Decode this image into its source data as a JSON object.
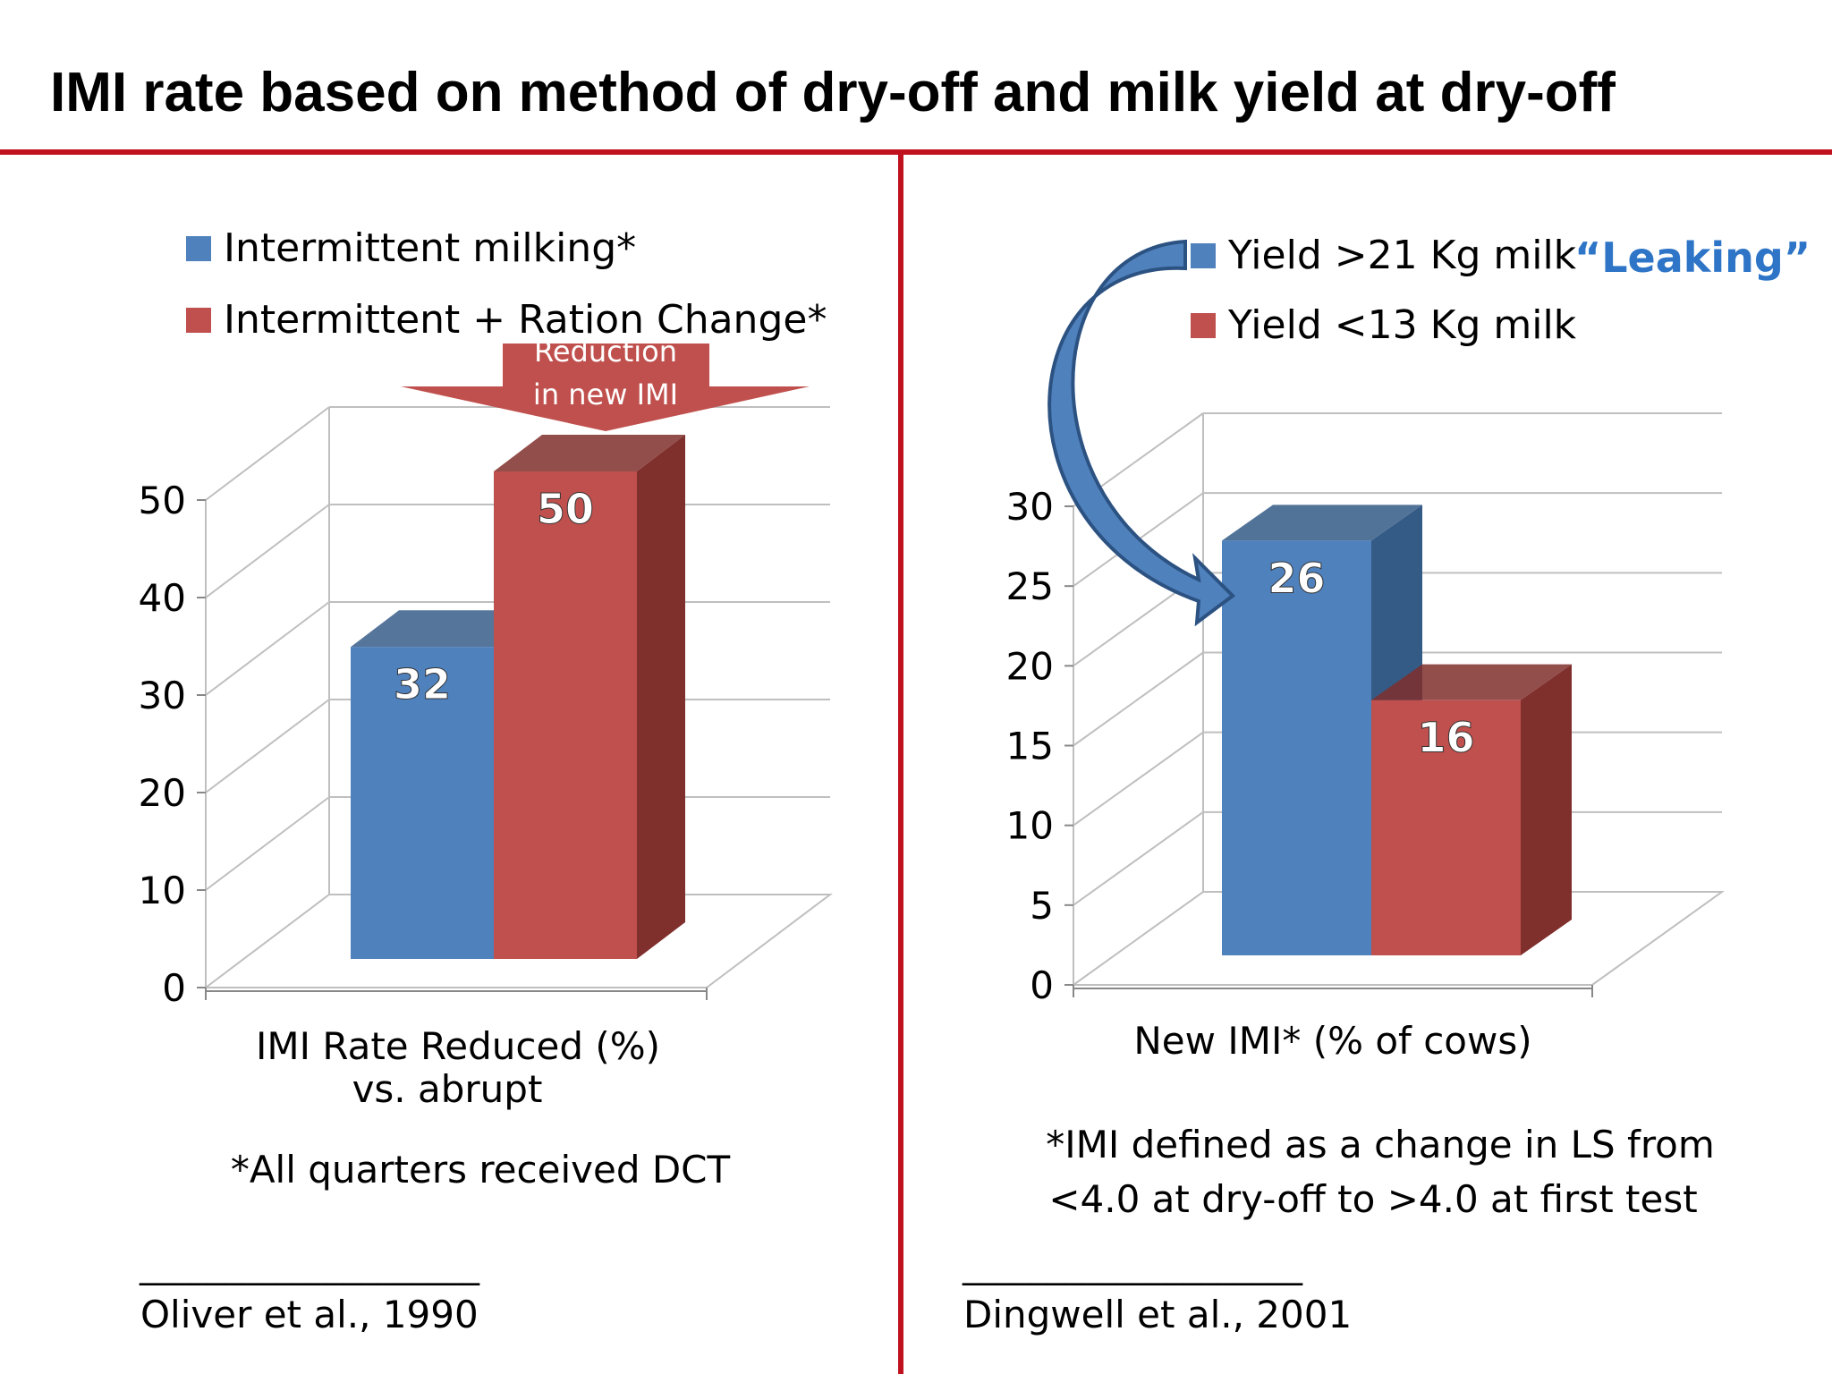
{
  "slide": {
    "title": "IMI rate based on method of dry-off and milk yield at dry-off",
    "accent_color": "#c0121e"
  },
  "left_panel": {
    "arrow_label_line1": "Reduction",
    "arrow_label_line2": "in new IMI",
    "xlabel_line1": "IMI Rate Reduced (%)",
    "xlabel_line2": "vs. abrupt",
    "footnote": "*All quarters received DCT",
    "rule": "____________________",
    "citation": "Oliver et al., 1990"
  },
  "right_panel": {
    "annotation": "“Leaking”",
    "footnote_line1": "*IMI defined as a change in LS from",
    "footnote_line2": "<4.0 at dry-off  to >4.0 at first test",
    "rule": "____________________",
    "citation": "Dingwell et al., 2001"
  },
  "chart_data": [
    {
      "type": "bar",
      "title": "",
      "xlabel": "IMI Rate Reduced (%) vs. abrupt",
      "ylabel": "",
      "ylim": [
        0,
        50
      ],
      "yticks": [
        0,
        10,
        20,
        30,
        40,
        50
      ],
      "categories": [
        "IMI Rate Reduced (%)"
      ],
      "series": [
        {
          "name": "Intermittent milking*",
          "values": [
            32
          ],
          "color": "#4f81bd",
          "side_color": "#385d8a",
          "label": "32"
        },
        {
          "name": "Intermittent + Ration Change*",
          "values": [
            50
          ],
          "color": "#c0504d",
          "side_color": "#7f2f2c",
          "label": "50"
        }
      ],
      "legend_position": "top-left"
    },
    {
      "type": "bar",
      "title": "",
      "xlabel": "New IMI* (% of cows)",
      "ylabel": "",
      "ylim": [
        0,
        30
      ],
      "yticks": [
        0,
        5,
        10,
        15,
        20,
        25,
        30
      ],
      "categories": [
        "New IMI* (% of cows)"
      ],
      "series": [
        {
          "name": "Yield >21 Kg milk",
          "values": [
            26
          ],
          "color": "#4f81bd",
          "side_color": "#345b86",
          "label": "26"
        },
        {
          "name": "Yield <13 Kg milk",
          "values": [
            16
          ],
          "color": "#c0504d",
          "side_color": "#7f2f2c",
          "label": "16"
        }
      ],
      "legend_position": "top-right"
    }
  ]
}
